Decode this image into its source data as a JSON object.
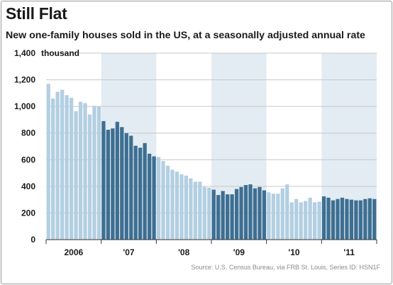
{
  "header": {
    "title": "Still Flat",
    "subtitle": "New one-family houses sold in the US, at a seasonally adjusted annual rate"
  },
  "source": "Source: U.S. Census Bureau, via FRB St. Louis, Series ID: HSN1F",
  "chart_data": {
    "type": "bar",
    "title": "Still Flat",
    "subtitle": "New one-family houses sold in the US, at a seasonally adjusted annual rate",
    "ylabel": "thousand",
    "ylim": [
      0,
      1400
    ],
    "yticks": [
      0,
      200,
      400,
      600,
      800,
      1000,
      1200,
      1400
    ],
    "ytick_labels": [
      "0",
      "200",
      "400",
      "600",
      "800",
      "1,000",
      "1,200",
      "1,400"
    ],
    "year_labels": [
      "2006",
      "'07",
      "'08",
      "'09",
      "'10",
      "'11"
    ],
    "grid": true,
    "colors": {
      "light_bar": "#b3cfe2",
      "dark_bar": "#3e6f92",
      "band": "#e3ecf3"
    },
    "series": [
      {
        "year": 2006,
        "values": [
          1170,
          1060,
          1110,
          1125,
          1085,
          1065,
          965,
          1035,
          1025,
          940,
          1005,
          1000
        ]
      },
      {
        "year": 2007,
        "values": [
          890,
          825,
          835,
          885,
          845,
          800,
          780,
          705,
          690,
          725,
          645,
          625
        ]
      },
      {
        "year": 2008,
        "values": [
          620,
          590,
          555,
          525,
          510,
          490,
          480,
          460,
          435,
          435,
          395,
          390
        ]
      },
      {
        "year": 2009,
        "values": [
          375,
          335,
          365,
          340,
          340,
          380,
          395,
          410,
          415,
          385,
          395,
          370
        ]
      },
      {
        "year": 2010,
        "values": [
          355,
          345,
          345,
          385,
          415,
          280,
          305,
          280,
          290,
          315,
          280,
          285
        ]
      },
      {
        "year": 2011,
        "values": [
          325,
          315,
          295,
          305,
          315,
          305,
          300,
          295,
          295,
          305,
          310,
          305
        ]
      }
    ]
  }
}
